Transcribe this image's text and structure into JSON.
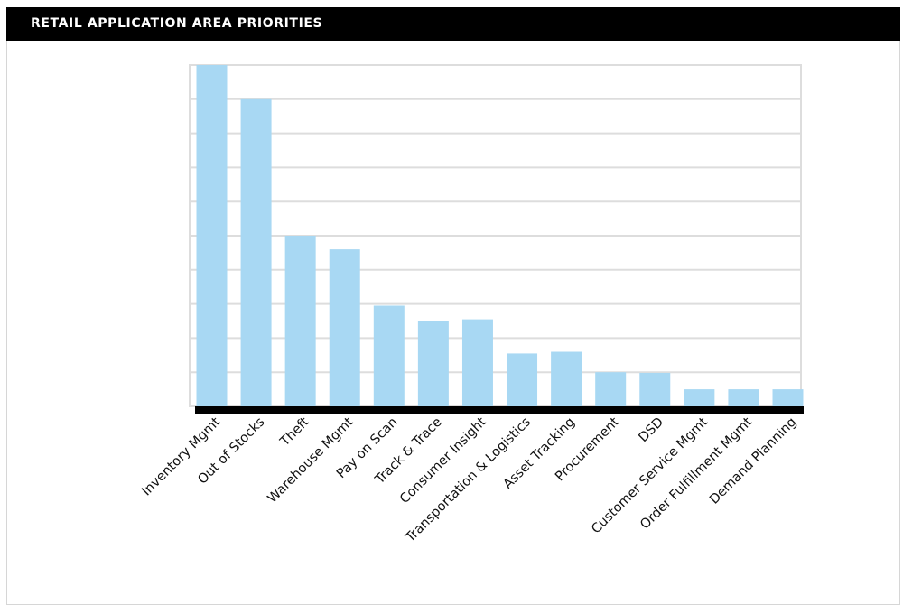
{
  "header": {
    "title": "RETAIL APPLICATION AREA PRIORITIES"
  },
  "colors": {
    "bar": "#a8d8f3",
    "baseline": "#000000",
    "grid": "#dddddd",
    "header_bg": "#000000"
  },
  "chart_data": {
    "type": "bar",
    "title": "RETAIL APPLICATION AREA PRIORITIES",
    "xlabel": "",
    "ylabel": "",
    "ylim": [
      0,
      10
    ],
    "grid": true,
    "y_ticks_shown": false,
    "categories": [
      "Inventory Mgmt",
      "Out of Stocks",
      "Theft",
      "Warehouse Mgmt",
      "Pay on Scan",
      "Track & Trace",
      "Consumer Insight",
      "Transportation & Logistics",
      "Asset Tracking",
      "Procurement",
      "DSD",
      "Customer Service Mgmt",
      "Order Fulfillment Mgmt",
      "Demand Planning"
    ],
    "values": [
      10.0,
      9.0,
      5.0,
      4.6,
      2.95,
      2.5,
      2.55,
      1.55,
      1.6,
      1.0,
      0.98,
      0.5,
      0.5,
      0.5
    ]
  }
}
